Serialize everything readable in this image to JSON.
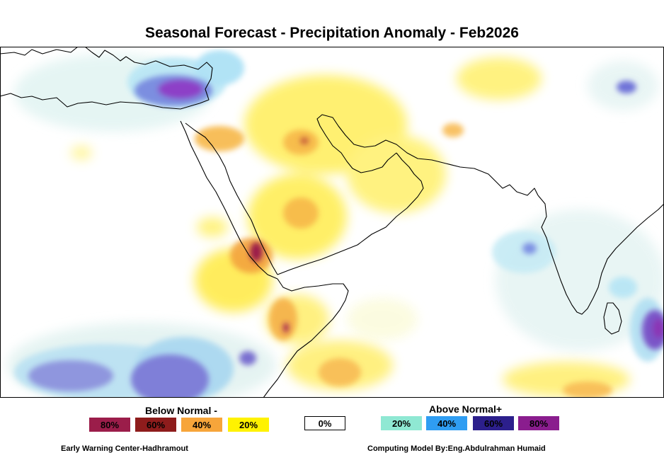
{
  "title": "Seasonal Forecast - Precipitation Anomaly - Feb2026",
  "legend": {
    "below_title": "Below Normal -",
    "above_title": "Above Normal+",
    "below": [
      {
        "label": "80%",
        "color": "#9b1d4a"
      },
      {
        "label": "60%",
        "color": "#8e1c1c"
      },
      {
        "label": "40%",
        "color": "#f7a53a"
      },
      {
        "label": "20%",
        "color": "#fff200"
      }
    ],
    "zero": {
      "label": "0%",
      "color": "#ffffff"
    },
    "above": [
      {
        "label": "20%",
        "color": "#8fe8d3"
      },
      {
        "label": "40%",
        "color": "#2f9df2"
      },
      {
        "label": "60%",
        "color": "#2c1f8c"
      },
      {
        "label": "80%",
        "color": "#8a1d8e"
      }
    ]
  },
  "footer": {
    "left": "Early Warning Center-Hadhramout",
    "right": "Computing Model By:Eng.Abdulrahman Humaid"
  }
}
